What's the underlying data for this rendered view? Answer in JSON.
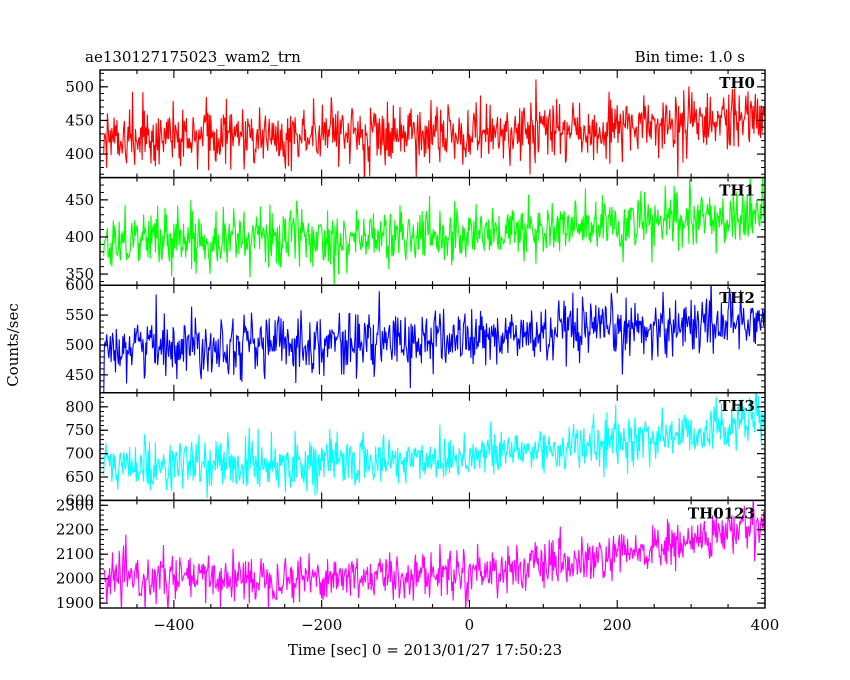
{
  "chart_data": {
    "type": "line",
    "title": "ae130127175023_wam2_trn",
    "bin_label": "Bin time: 1.0 s",
    "xlabel": "Time [sec] 0 = 2013/01/27 17:50:23",
    "ylabel": "Counts/sec",
    "x_range": [
      -500,
      400
    ],
    "x_ticks": [
      -400,
      -200,
      0,
      200,
      400
    ],
    "x_tick_labels": [
      "−400",
      "−200",
      "0",
      "200",
      "400"
    ],
    "x_step": 1.0,
    "panels": [
      {
        "name": "TH0",
        "color": "#ff0000",
        "ylim": [
          365,
          525
        ],
        "y_ticks": [
          400,
          450,
          500
        ],
        "y_tick_labels": [
          "400",
          "450",
          "500"
        ],
        "trend": [
          [
            -500,
            425
          ],
          [
            -100,
            428
          ],
          [
            150,
            435
          ],
          [
            400,
            452
          ]
        ],
        "noise_sd": 22
      },
      {
        "name": "TH1",
        "color": "#00ff00",
        "ylim": [
          335,
          480
        ],
        "y_ticks": [
          350,
          400,
          450
        ],
        "y_tick_labels": [
          "350",
          "400",
          "450"
        ],
        "trend": [
          [
            -500,
            398
          ],
          [
            -100,
            400
          ],
          [
            150,
            412
          ],
          [
            400,
            428
          ]
        ],
        "noise_sd": 20
      },
      {
        "name": "TH2",
        "color": "#0000ff",
        "ylim": [
          420,
          600
        ],
        "y_ticks": [
          450,
          500,
          550,
          600
        ],
        "y_tick_labels": [
          "450",
          "500",
          "550",
          "600"
        ],
        "trend": [
          [
            -500,
            500
          ],
          [
            -100,
            505
          ],
          [
            150,
            520
          ],
          [
            400,
            545
          ]
        ],
        "noise_sd": 25
      },
      {
        "name": "TH3",
        "color": "#00ffff",
        "ylim": [
          600,
          830
        ],
        "y_ticks": [
          600,
          650,
          700,
          750,
          800
        ],
        "y_tick_labels": [
          "600",
          "650",
          "700",
          "750",
          "800"
        ],
        "trend": [
          [
            -500,
            672
          ],
          [
            -100,
            685
          ],
          [
            150,
            715
          ],
          [
            300,
            745
          ],
          [
            400,
            775
          ]
        ],
        "noise_sd": 27
      },
      {
        "name": "TH0123",
        "color": "#ff00ff",
        "ylim": [
          1880,
          2320
        ],
        "y_ticks": [
          1900,
          2000,
          2100,
          2200,
          2300
        ],
        "y_tick_labels": [
          "1900",
          "2000",
          "2100",
          "2200",
          "2300"
        ],
        "trend": [
          [
            -500,
            1995
          ],
          [
            -100,
            2010
          ],
          [
            150,
            2060
          ],
          [
            300,
            2150
          ],
          [
            400,
            2230
          ]
        ],
        "noise_sd": 48
      }
    ]
  }
}
